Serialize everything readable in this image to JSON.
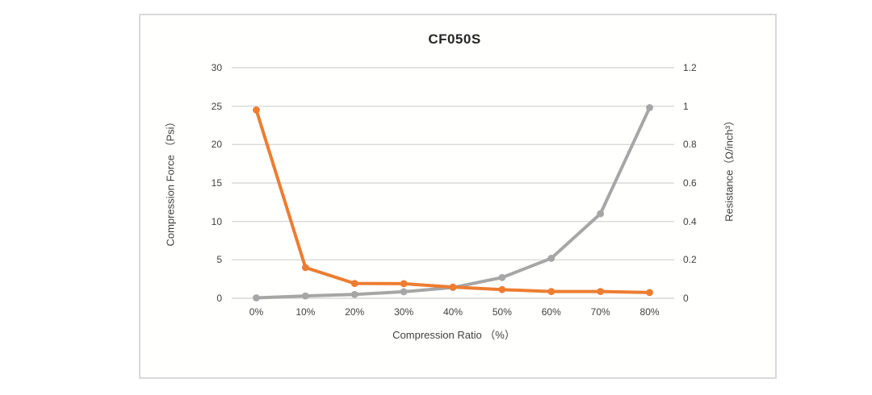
{
  "chart_data": {
    "type": "line",
    "title": "CF050S",
    "categories": [
      "0%",
      "10%",
      "20%",
      "30%",
      "40%",
      "50%",
      "60%",
      "70%",
      "80%"
    ],
    "x_axis": {
      "title": "Compression Ratio （%）"
    },
    "left_axis": {
      "title": "Compression Force （Psi）",
      "min": 0,
      "max": 30,
      "step": 5,
      "tick_labels": [
        "0",
        "5",
        "10",
        "15",
        "20",
        "25",
        "30"
      ]
    },
    "right_axis": {
      "title": "Resistance（Ω/inch³）",
      "min": 0,
      "max": 1.2,
      "step": 0.2,
      "tick_labels": [
        "0",
        "0.2",
        "0.4",
        "0.6",
        "0.8",
        "1",
        "1.2"
      ]
    },
    "series": [
      {
        "name": "Compression Force",
        "axis": "left",
        "color": "#a6a6a6",
        "values": [
          0.05,
          0.3,
          0.5,
          0.85,
          1.4,
          2.7,
          5.2,
          11,
          24.8
        ]
      },
      {
        "name": "Resistance",
        "axis": "right",
        "color": "#ed7d31",
        "values": [
          0.98,
          0.16,
          0.077,
          0.076,
          0.058,
          0.045,
          0.035,
          0.035,
          0.03
        ]
      }
    ],
    "grid": true,
    "legend": "none",
    "gridline_color": "#d9d9d9"
  }
}
